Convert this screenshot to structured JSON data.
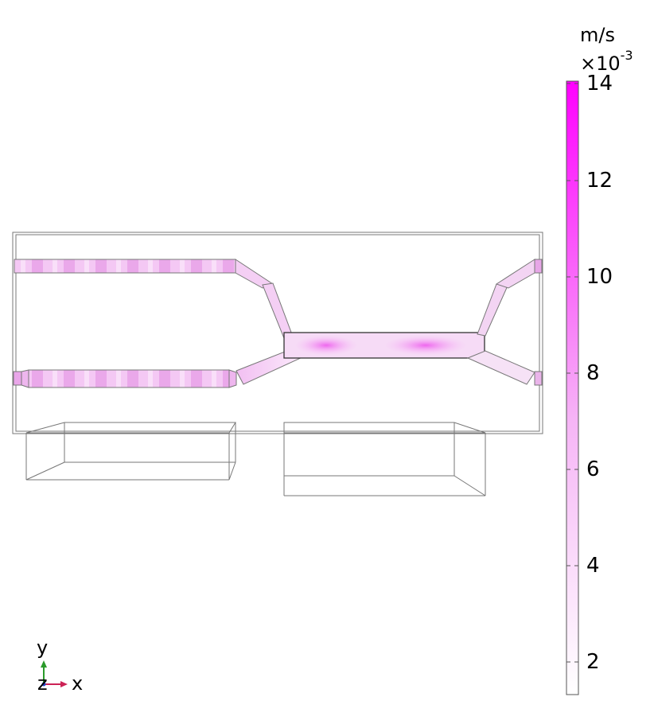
{
  "colorbar": {
    "unit": "m/s",
    "multiplier_base": "×10",
    "multiplier_exp": "-3",
    "ticks": [
      "14",
      "12",
      "10",
      "8",
      "6",
      "4",
      "2"
    ],
    "colors": {
      "max": "#ff00ff",
      "min": "#ffffff"
    }
  },
  "axes": {
    "y": "y",
    "z": "z",
    "x": "x"
  },
  "colors": {
    "outline": "#555555",
    "channel_dark": "#f08af0",
    "channel_light": "#fbe6fb"
  }
}
